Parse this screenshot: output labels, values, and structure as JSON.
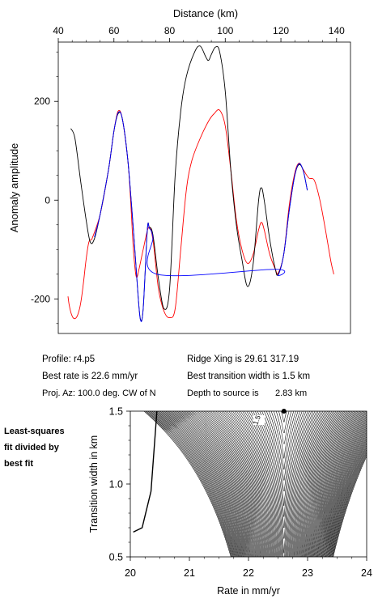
{
  "chart_data": [
    {
      "type": "line",
      "xlabel": "Distance (km)",
      "ylabel": "Anomaly amplitude",
      "xlim": [
        40,
        145
      ],
      "ylim": [
        -270,
        320
      ],
      "x_ticks": [
        40,
        60,
        80,
        100,
        120,
        140
      ],
      "y_ticks": [
        200,
        0,
        -200
      ],
      "series": [
        {
          "color": "#000000",
          "points": [
            [
              44.5,
              145
            ],
            [
              46,
              125
            ],
            [
              48,
              40
            ],
            [
              50,
              -40
            ],
            [
              51.5,
              -85
            ],
            [
              53,
              -78
            ],
            [
              55,
              -30
            ],
            [
              58,
              60
            ],
            [
              60,
              140
            ],
            [
              61.5,
              175
            ],
            [
              63,
              165
            ],
            [
              65,
              80
            ],
            [
              67,
              -60
            ],
            [
              68.5,
              -180
            ],
            [
              69.5,
              -240
            ],
            [
              70.5,
              -220
            ],
            [
              72,
              -60
            ],
            [
              72.7,
              -55
            ],
            [
              74,
              -70
            ],
            [
              76,
              -160
            ],
            [
              78,
              -220
            ],
            [
              80,
              -180
            ],
            [
              82,
              50
            ],
            [
              84,
              180
            ],
            [
              86,
              250
            ],
            [
              89,
              300
            ],
            [
              91,
              312
            ],
            [
              93,
              290
            ],
            [
              94,
              283
            ],
            [
              95,
              295
            ],
            [
              96.5,
              310
            ],
            [
              98,
              300
            ],
            [
              100,
              220
            ],
            [
              102,
              60
            ],
            [
              104,
              -50
            ],
            [
              106,
              -120
            ],
            [
              108,
              -175
            ],
            [
              110,
              -130
            ],
            [
              112,
              0
            ],
            [
              113,
              25
            ],
            [
              114,
              0
            ],
            [
              116,
              -80
            ],
            [
              118,
              -140
            ],
            [
              119,
              -150
            ],
            [
              121,
              -110
            ],
            [
              123,
              -20
            ],
            [
              125,
              50
            ],
            [
              126.5,
              72
            ],
            [
              128,
              60
            ],
            [
              129.5,
              20
            ]
          ]
        },
        {
          "color": "#0000ff",
          "points": [
            [
              53,
              -75
            ],
            [
              55,
              -30
            ],
            [
              58,
              60
            ],
            [
              60,
              140
            ],
            [
              61.5,
              177
            ],
            [
              63,
              165
            ],
            [
              65,
              80
            ],
            [
              67,
              -60
            ],
            [
              68.5,
              -180
            ],
            [
              69.5,
              -242
            ],
            [
              70.5,
              -220
            ],
            [
              72,
              -60
            ],
            [
              72.7,
              -57
            ],
            [
              74,
              -75
            ],
            [
              75.5,
              -150
            ],
            [
              118,
              -140
            ],
            [
              119,
              -152
            ],
            [
              121,
              -110
            ],
            [
              123,
              -20
            ],
            [
              125,
              50
            ],
            [
              126.5,
              74
            ],
            [
              128,
              60
            ],
            [
              129.5,
              20
            ]
          ]
        },
        {
          "color": "#ff0000",
          "points": [
            [
              52,
              -80
            ],
            [
              55,
              -30
            ],
            [
              58,
              60
            ],
            [
              60,
              140
            ],
            [
              61.5,
              180
            ],
            [
              63,
              165
            ],
            [
              65,
              80
            ],
            [
              66,
              0
            ],
            [
              67,
              -100
            ],
            [
              68,
              -155
            ],
            [
              69,
              -140
            ],
            [
              70.5,
              -100
            ],
            [
              72.5,
              -55
            ],
            [
              74,
              -80
            ],
            [
              76,
              -180
            ],
            [
              78,
              -225
            ],
            [
              80,
              -238
            ],
            [
              82,
              -220
            ],
            [
              84,
              -100
            ],
            [
              86,
              20
            ],
            [
              88,
              80
            ],
            [
              91,
              125
            ],
            [
              94,
              160
            ],
            [
              96,
              175
            ],
            [
              98,
              182
            ],
            [
              100,
              150
            ],
            [
              102,
              60
            ],
            [
              104,
              -40
            ],
            [
              106,
              -100
            ],
            [
              108,
              -128
            ],
            [
              110,
              -110
            ],
            [
              112,
              -60
            ],
            [
              113,
              -45
            ],
            [
              114,
              -60
            ],
            [
              116,
              -110
            ],
            [
              118,
              -140
            ],
            [
              119,
              -148
            ],
            [
              121,
              -110
            ],
            [
              123,
              -10
            ],
            [
              125,
              55
            ],
            [
              126.5,
              75
            ],
            [
              128,
              62
            ],
            [
              130,
              45
            ],
            [
              132,
              40
            ],
            [
              134,
              0
            ],
            [
              136,
              -60
            ],
            [
              138,
              -125
            ],
            [
              139,
              -150
            ]
          ]
        },
        {
          "color": "#ff0000",
          "points": [
            [
              43.5,
              -195
            ],
            [
              44,
              -215
            ],
            [
              45,
              -235
            ],
            [
              46,
              -240
            ],
            [
              47,
              -232
            ],
            [
              48,
              -210
            ],
            [
              49,
              -170
            ],
            [
              50,
              -120
            ],
            [
              51,
              -85
            ],
            [
              52,
              -80
            ]
          ]
        }
      ]
    },
    {
      "type": "contour",
      "xlabel": "Rate in mm/yr",
      "ylabel": "Transition width in km",
      "xlim": [
        20,
        24
      ],
      "ylim": [
        0.5,
        1.5
      ],
      "x_ticks": [
        20,
        21,
        22,
        23,
        24
      ],
      "y_ticks": [
        1.5,
        1.0,
        0.5
      ],
      "contour_label": "1.5",
      "best_fit_point": [
        22.6,
        1.5
      ]
    }
  ],
  "info": {
    "profile": "Profile: r4.p5",
    "best_rate": "Best rate is 22.6 mm/yr",
    "proj_az": "Proj. Az: 100.0 deg. CW of N",
    "ridge_xing": "Ridge Xing is 29.61 317.19",
    "best_width": "Best transition width is 1.5 km",
    "depth": "Depth to source is",
    "depth_value": "2.83 km"
  },
  "side_caption": [
    "Least-squares",
    "fit divided by",
    "best fit"
  ]
}
